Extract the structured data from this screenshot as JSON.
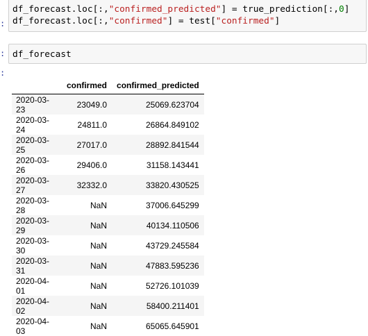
{
  "cells": [
    {
      "prompt": ":",
      "code_lines": [
        [
          "df_forecast.loc[:,",
          "\"confirmed_predicted\"",
          "] = true_prediction[:,",
          "0",
          "]"
        ],
        [
          "df_forecast.loc[:,",
          "\"confirmed\"",
          "] = test[",
          "\"confirmed\"",
          "]"
        ]
      ]
    },
    {
      "prompt": ":",
      "code": "df_forecast"
    }
  ],
  "output_prompt": ":",
  "table": {
    "columns": [
      "",
      "confirmed",
      "confirmed_predicted"
    ],
    "rows": [
      [
        "2020-03-23",
        "23049.0",
        "25069.623704"
      ],
      [
        "2020-03-24",
        "24811.0",
        "26864.849102"
      ],
      [
        "2020-03-25",
        "27017.0",
        "28892.841544"
      ],
      [
        "2020-03-26",
        "29406.0",
        "31158.143441"
      ],
      [
        "2020-03-27",
        "32332.0",
        "33820.430525"
      ],
      [
        "2020-03-28",
        "NaN",
        "37006.645299"
      ],
      [
        "2020-03-29",
        "NaN",
        "40134.110506"
      ],
      [
        "2020-03-30",
        "NaN",
        "43729.245584"
      ],
      [
        "2020-03-31",
        "NaN",
        "47883.595236"
      ],
      [
        "2020-04-01",
        "NaN",
        "52726.101039"
      ],
      [
        "2020-04-02",
        "NaN",
        "58400.211401"
      ],
      [
        "2020-04-03",
        "NaN",
        "65065.645901"
      ]
    ]
  },
  "colors": {
    "string": "#ba2121",
    "number": "#008000",
    "prompt": "#303f9f",
    "cell_background": "#f7f7f7",
    "row_stripe": "#f5f5f5"
  }
}
